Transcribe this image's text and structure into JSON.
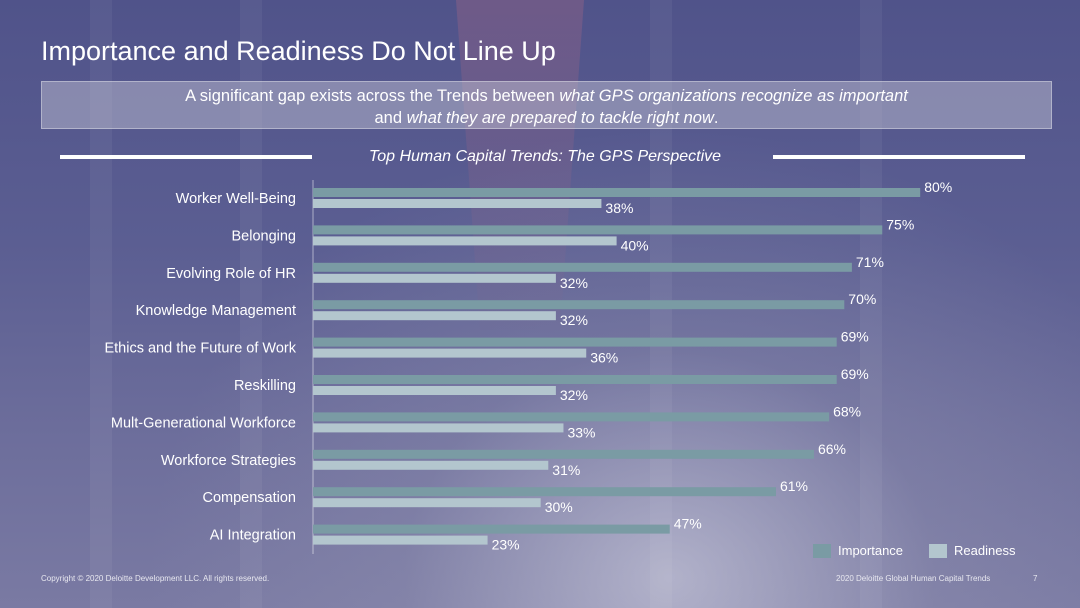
{
  "slide": {
    "title": "Importance and Readiness Do Not Line Up",
    "banner": {
      "part1": "A significant gap exists across the Trends between ",
      "em1": "what GPS organizations recognize as important",
      "part2": "and ",
      "em2": "what they are prepared to tackle right now",
      "part3": "."
    },
    "footer_left": "Copyright © 2020 Deloitte Development LLC. All rights reserved.",
    "footer_right": "2020 Deloitte Global Human Capital Trends",
    "page_number": "7"
  },
  "chart_data": {
    "type": "bar",
    "orientation": "horizontal",
    "title": "Top Human Capital Trends: The GPS Perspective",
    "categories": [
      "Worker Well-Being",
      "Belonging",
      "Evolving Role of HR",
      "Knowledge Management",
      "Ethics and the Future of Work",
      "Reskilling",
      "Mult-Generational Workforce",
      "Workforce Strategies",
      "Compensation",
      "AI Integration"
    ],
    "series": [
      {
        "name": "Importance",
        "values": [
          80,
          75,
          71,
          70,
          69,
          69,
          68,
          66,
          61,
          47
        ],
        "labels": [
          "80%",
          "75%",
          "71%",
          "70%",
          "69%",
          "69%",
          "68%",
          "66%",
          "61%",
          "47%"
        ],
        "color": "#7a9ba4"
      },
      {
        "name": "Readiness",
        "values": [
          38,
          40,
          32,
          32,
          36,
          32,
          33,
          31,
          30,
          23
        ],
        "labels": [
          "38%",
          "40%",
          "32%",
          "32%",
          "36%",
          "32%",
          "33%",
          "31%",
          "30%",
          "23%"
        ],
        "color": "#b3c6ce"
      }
    ],
    "xlim": [
      0,
      100
    ],
    "legend_position": "bottom-right",
    "grid": false
  }
}
